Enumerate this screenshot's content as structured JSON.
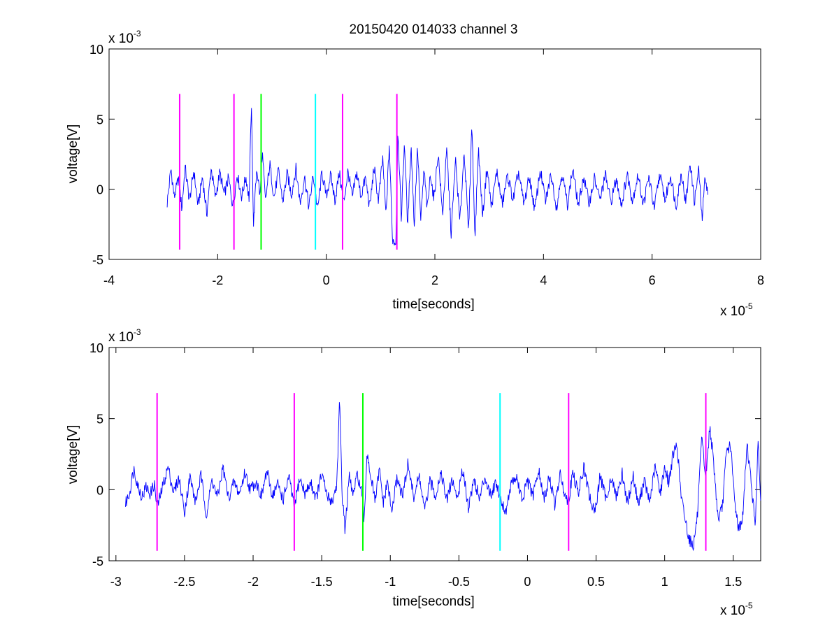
{
  "title": "20150420 014033 channel 3",
  "chart_data": [
    {
      "type": "line",
      "title": "20150420 014033 channel 3",
      "xlabel": "time[seconds]",
      "ylabel": "voltage[V]",
      "x_multiplier": "x 10",
      "x_multiplier_exp": "-5",
      "y_multiplier": "x 10",
      "y_multiplier_exp": "-3",
      "xlim": [
        -4,
        8
      ],
      "ylim": [
        -5,
        10
      ],
      "xticks": [
        -4,
        -2,
        0,
        2,
        4,
        6,
        8
      ],
      "xtick_labels": [
        "-4",
        "-2",
        "0",
        "2",
        "4",
        "6",
        "8"
      ],
      "yticks": [
        -5,
        0,
        5,
        10
      ],
      "ytick_labels": [
        "-5",
        "0",
        "5",
        "10"
      ],
      "grid": false,
      "signal": {
        "color": "#0000ff",
        "x_range": [
          -2.93,
          7.03
        ],
        "points": [
          [
            -2.93,
            -1.0
          ],
          [
            -2.86,
            1.5
          ],
          [
            -2.8,
            -0.6
          ],
          [
            -2.72,
            0.8
          ],
          [
            -2.66,
            -1.4
          ],
          [
            -2.6,
            1.6
          ],
          [
            -2.52,
            -0.8
          ],
          [
            -2.44,
            1.3
          ],
          [
            -2.36,
            -1.2
          ],
          [
            -2.28,
            0.9
          ],
          [
            -2.2,
            -1.8
          ],
          [
            -2.12,
            1.5
          ],
          [
            -2.04,
            -0.6
          ],
          [
            -1.96,
            1.2
          ],
          [
            -1.88,
            -0.4
          ],
          [
            -1.8,
            0.8
          ],
          [
            -1.72,
            -1.2
          ],
          [
            -1.64,
            1.1
          ],
          [
            -1.56,
            -0.5
          ],
          [
            -1.48,
            0.9
          ],
          [
            -1.42,
            -0.7
          ],
          [
            -1.38,
            6.1
          ],
          [
            -1.34,
            -2.6
          ],
          [
            -1.28,
            1.6
          ],
          [
            -1.22,
            -0.5
          ],
          [
            -1.18,
            2.7
          ],
          [
            -1.12,
            -0.9
          ],
          [
            -1.04,
            1.8
          ],
          [
            -0.96,
            -0.6
          ],
          [
            -0.88,
            1.3
          ],
          [
            -0.8,
            -0.9
          ],
          [
            -0.72,
            1.1
          ],
          [
            -0.64,
            -0.4
          ],
          [
            -0.56,
            1.5
          ],
          [
            -0.48,
            -1.0
          ],
          [
            -0.4,
            0.9
          ],
          [
            -0.32,
            -1.3
          ],
          [
            -0.24,
            1.0
          ],
          [
            -0.16,
            -1.5
          ],
          [
            -0.08,
            1.2
          ],
          [
            0.0,
            -0.5
          ],
          [
            0.08,
            1.0
          ],
          [
            0.16,
            -0.8
          ],
          [
            0.24,
            1.2
          ],
          [
            0.32,
            -1.0
          ],
          [
            0.4,
            1.3
          ],
          [
            0.48,
            -0.6
          ],
          [
            0.56,
            1.2
          ],
          [
            0.64,
            -0.5
          ],
          [
            0.72,
            0.8
          ],
          [
            0.8,
            -1.3
          ],
          [
            0.88,
            1.6
          ],
          [
            0.96,
            -0.8
          ],
          [
            1.04,
            2.2
          ],
          [
            1.1,
            -2.0
          ],
          [
            1.16,
            3.2
          ],
          [
            1.22,
            -3.6
          ],
          [
            1.28,
            -3.8
          ],
          [
            1.32,
            4.4
          ],
          [
            1.38,
            -2.2
          ],
          [
            1.44,
            3.5
          ],
          [
            1.5,
            -2.8
          ],
          [
            1.56,
            3.3
          ],
          [
            1.62,
            -2.6
          ],
          [
            1.68,
            3.1
          ],
          [
            1.74,
            -2.3
          ],
          [
            1.8,
            1.4
          ],
          [
            1.86,
            -1.5
          ],
          [
            1.92,
            1.2
          ],
          [
            1.98,
            -0.8
          ],
          [
            2.06,
            2.6
          ],
          [
            2.14,
            -1.8
          ],
          [
            2.22,
            2.8
          ],
          [
            2.3,
            -3.2
          ],
          [
            2.38,
            2.1
          ],
          [
            2.46,
            -2.4
          ],
          [
            2.54,
            2.8
          ],
          [
            2.62,
            -3.1
          ],
          [
            2.68,
            4.8
          ],
          [
            2.74,
            -3.5
          ],
          [
            2.8,
            3.0
          ],
          [
            2.88,
            -1.9
          ],
          [
            2.96,
            1.6
          ],
          [
            3.04,
            -1.3
          ],
          [
            3.14,
            1.3
          ],
          [
            3.24,
            -1.1
          ],
          [
            3.34,
            1.0
          ],
          [
            3.44,
            -0.8
          ],
          [
            3.54,
            1.2
          ],
          [
            3.64,
            -1.1
          ],
          [
            3.74,
            0.9
          ],
          [
            3.84,
            -1.5
          ],
          [
            3.94,
            1.4
          ],
          [
            4.04,
            -0.9
          ],
          [
            4.14,
            1.1
          ],
          [
            4.24,
            -1.3
          ],
          [
            4.34,
            1.2
          ],
          [
            4.44,
            -1.1
          ],
          [
            4.54,
            1.5
          ],
          [
            4.64,
            -1.2
          ],
          [
            4.74,
            0.9
          ],
          [
            4.84,
            -1.0
          ],
          [
            4.94,
            0.8
          ],
          [
            5.04,
            -0.8
          ],
          [
            5.14,
            1.0
          ],
          [
            5.24,
            -0.9
          ],
          [
            5.34,
            0.7
          ],
          [
            5.44,
            -1.1
          ],
          [
            5.54,
            1.1
          ],
          [
            5.64,
            -0.8
          ],
          [
            5.74,
            1.0
          ],
          [
            5.84,
            -1.1
          ],
          [
            5.94,
            0.9
          ],
          [
            6.04,
            -1.4
          ],
          [
            6.14,
            1.1
          ],
          [
            6.24,
            -0.8
          ],
          [
            6.34,
            1.0
          ],
          [
            6.44,
            -1.2
          ],
          [
            6.54,
            1.2
          ],
          [
            6.62,
            -1.0
          ],
          [
            6.7,
            2.0
          ],
          [
            6.78,
            -0.9
          ],
          [
            6.86,
            1.4
          ],
          [
            6.92,
            -2.2
          ],
          [
            6.98,
            1.1
          ],
          [
            7.03,
            -0.6
          ]
        ]
      },
      "markers": [
        {
          "x": -2.7,
          "color": "#ff00ff"
        },
        {
          "x": -1.7,
          "color": "#ff00ff"
        },
        {
          "x": -1.2,
          "color": "#00ff00"
        },
        {
          "x": -0.2,
          "color": "#00ffff"
        },
        {
          "x": 0.3,
          "color": "#ff00ff"
        },
        {
          "x": 1.3,
          "color": "#ff00ff"
        }
      ],
      "marker_yrange": [
        -4.3,
        6.8
      ]
    },
    {
      "type": "line",
      "title": "",
      "xlabel": "time[seconds]",
      "ylabel": "voltage[V]",
      "x_multiplier": "x 10",
      "x_multiplier_exp": "-5",
      "y_multiplier": "x 10",
      "y_multiplier_exp": "-3",
      "xlim": [
        -3.05,
        1.7
      ],
      "ylim": [
        -5,
        10
      ],
      "xticks": [
        -3,
        -2.5,
        -2,
        -1.5,
        -1,
        -0.5,
        0,
        0.5,
        1,
        1.5
      ],
      "xtick_labels": [
        "-3",
        "-2.5",
        "-2",
        "-1.5",
        "-1",
        "-0.5",
        "0",
        "0.5",
        "1",
        "1.5"
      ],
      "yticks": [
        -5,
        0,
        5,
        10
      ],
      "ytick_labels": [
        "-5",
        "0",
        "5",
        "10"
      ],
      "grid": false,
      "signal": {
        "color": "#0000ff",
        "x_range": [
          -2.93,
          1.7
        ],
        "points": [
          [
            -2.93,
            -1.0
          ],
          [
            -2.9,
            -0.2
          ],
          [
            -2.87,
            1.5
          ],
          [
            -2.84,
            0.3
          ],
          [
            -2.81,
            -0.5
          ],
          [
            -2.78,
            0.2
          ],
          [
            -2.75,
            -0.3
          ],
          [
            -2.72,
            0.4
          ],
          [
            -2.7,
            -1.3
          ],
          [
            -2.66,
            0.2
          ],
          [
            -2.62,
            1.6
          ],
          [
            -2.58,
            -0.2
          ],
          [
            -2.54,
            0.8
          ],
          [
            -2.5,
            -1.5
          ],
          [
            -2.46,
            0.9
          ],
          [
            -2.42,
            -0.9
          ],
          [
            -2.38,
            1.0
          ],
          [
            -2.34,
            -1.8
          ],
          [
            -2.3,
            0.7
          ],
          [
            -2.26,
            -0.6
          ],
          [
            -2.22,
            1.6
          ],
          [
            -2.18,
            -0.6
          ],
          [
            -2.14,
            0.5
          ],
          [
            -2.1,
            -0.3
          ],
          [
            -2.06,
            1.2
          ],
          [
            -2.02,
            0.0
          ],
          [
            -1.98,
            0.6
          ],
          [
            -1.94,
            -0.5
          ],
          [
            -1.9,
            1.3
          ],
          [
            -1.86,
            -0.4
          ],
          [
            -1.82,
            0.4
          ],
          [
            -1.78,
            -0.7
          ],
          [
            -1.74,
            0.9
          ],
          [
            -1.7,
            -1.2
          ],
          [
            -1.66,
            0.8
          ],
          [
            -1.62,
            -0.3
          ],
          [
            -1.58,
            0.5
          ],
          [
            -1.54,
            -0.6
          ],
          [
            -1.5,
            1.1
          ],
          [
            -1.46,
            -0.5
          ],
          [
            -1.42,
            -0.8
          ],
          [
            -1.39,
            0.4
          ],
          [
            -1.37,
            6.2
          ],
          [
            -1.35,
            -0.5
          ],
          [
            -1.33,
            -2.8
          ],
          [
            -1.3,
            0.9
          ],
          [
            -1.27,
            -0.4
          ],
          [
            -1.24,
            1.1
          ],
          [
            -1.21,
            -0.2
          ],
          [
            -1.19,
            -2.3
          ],
          [
            -1.17,
            2.7
          ],
          [
            -1.14,
            0.8
          ],
          [
            -1.11,
            -0.8
          ],
          [
            -1.08,
            1.4
          ],
          [
            -1.05,
            -1.0
          ],
          [
            -1.02,
            0.6
          ],
          [
            -0.99,
            -1.6
          ],
          [
            -0.95,
            0.9
          ],
          [
            -0.91,
            -0.5
          ],
          [
            -0.87,
            1.9
          ],
          [
            -0.83,
            -0.6
          ],
          [
            -0.79,
            1.0
          ],
          [
            -0.75,
            -1.5
          ],
          [
            -0.71,
            0.6
          ],
          [
            -0.67,
            -0.4
          ],
          [
            -0.63,
            1.3
          ],
          [
            -0.59,
            -0.8
          ],
          [
            -0.55,
            0.7
          ],
          [
            -0.51,
            -0.6
          ],
          [
            -0.47,
            1.5
          ],
          [
            -0.43,
            -1.3
          ],
          [
            -0.39,
            0.8
          ],
          [
            -0.35,
            -0.7
          ],
          [
            -0.31,
            1.0
          ],
          [
            -0.27,
            -0.4
          ],
          [
            -0.23,
            0.6
          ],
          [
            -0.2,
            -0.5
          ],
          [
            -0.16,
            -1.6
          ],
          [
            -0.12,
            0.4
          ],
          [
            -0.08,
            0.9
          ],
          [
            -0.04,
            -0.8
          ],
          [
            0.0,
            0.6
          ],
          [
            0.04,
            -0.5
          ],
          [
            0.08,
            1.4
          ],
          [
            0.12,
            -0.7
          ],
          [
            0.16,
            0.9
          ],
          [
            0.2,
            -1.1
          ],
          [
            0.24,
            1.1
          ],
          [
            0.28,
            -0.6
          ],
          [
            0.3,
            -0.7
          ],
          [
            0.33,
            1.2
          ],
          [
            0.37,
            -0.3
          ],
          [
            0.41,
            1.6
          ],
          [
            0.45,
            -0.4
          ],
          [
            0.49,
            -1.7
          ],
          [
            0.53,
            1.0
          ],
          [
            0.57,
            -0.6
          ],
          [
            0.61,
            0.8
          ],
          [
            0.65,
            -0.5
          ],
          [
            0.69,
            1.2
          ],
          [
            0.73,
            -1.0
          ],
          [
            0.77,
            1.0
          ],
          [
            0.81,
            -1.1
          ],
          [
            0.85,
            0.7
          ],
          [
            0.89,
            -0.9
          ],
          [
            0.93,
            1.6
          ],
          [
            0.97,
            -0.2
          ],
          [
            1.0,
            1.6
          ],
          [
            1.03,
            0.5
          ],
          [
            1.06,
            2.4
          ],
          [
            1.09,
            3.2
          ],
          [
            1.12,
            -0.5
          ],
          [
            1.15,
            -2.1
          ],
          [
            1.18,
            -3.5
          ],
          [
            1.21,
            -3.9
          ],
          [
            1.24,
            -1.7
          ],
          [
            1.27,
            3.6
          ],
          [
            1.3,
            0.8
          ],
          [
            1.33,
            4.5
          ],
          [
            1.36,
            1.5
          ],
          [
            1.39,
            -2.1
          ],
          [
            1.42,
            -1.3
          ],
          [
            1.45,
            2.6
          ],
          [
            1.48,
            3.2
          ],
          [
            1.51,
            -0.8
          ],
          [
            1.54,
            -2.8
          ],
          [
            1.57,
            -1.9
          ],
          [
            1.6,
            3.3
          ],
          [
            1.63,
            0.6
          ],
          [
            1.66,
            -2.5
          ],
          [
            1.68,
            3.2
          ],
          [
            1.7,
            -0.5
          ]
        ]
      },
      "markers": [
        {
          "x": -2.7,
          "color": "#ff00ff"
        },
        {
          "x": -1.7,
          "color": "#ff00ff"
        },
        {
          "x": -1.2,
          "color": "#00ff00"
        },
        {
          "x": -0.2,
          "color": "#00ffff"
        },
        {
          "x": 0.3,
          "color": "#ff00ff"
        },
        {
          "x": 1.3,
          "color": "#ff00ff"
        }
      ],
      "marker_yrange": [
        -4.3,
        6.8
      ]
    }
  ]
}
